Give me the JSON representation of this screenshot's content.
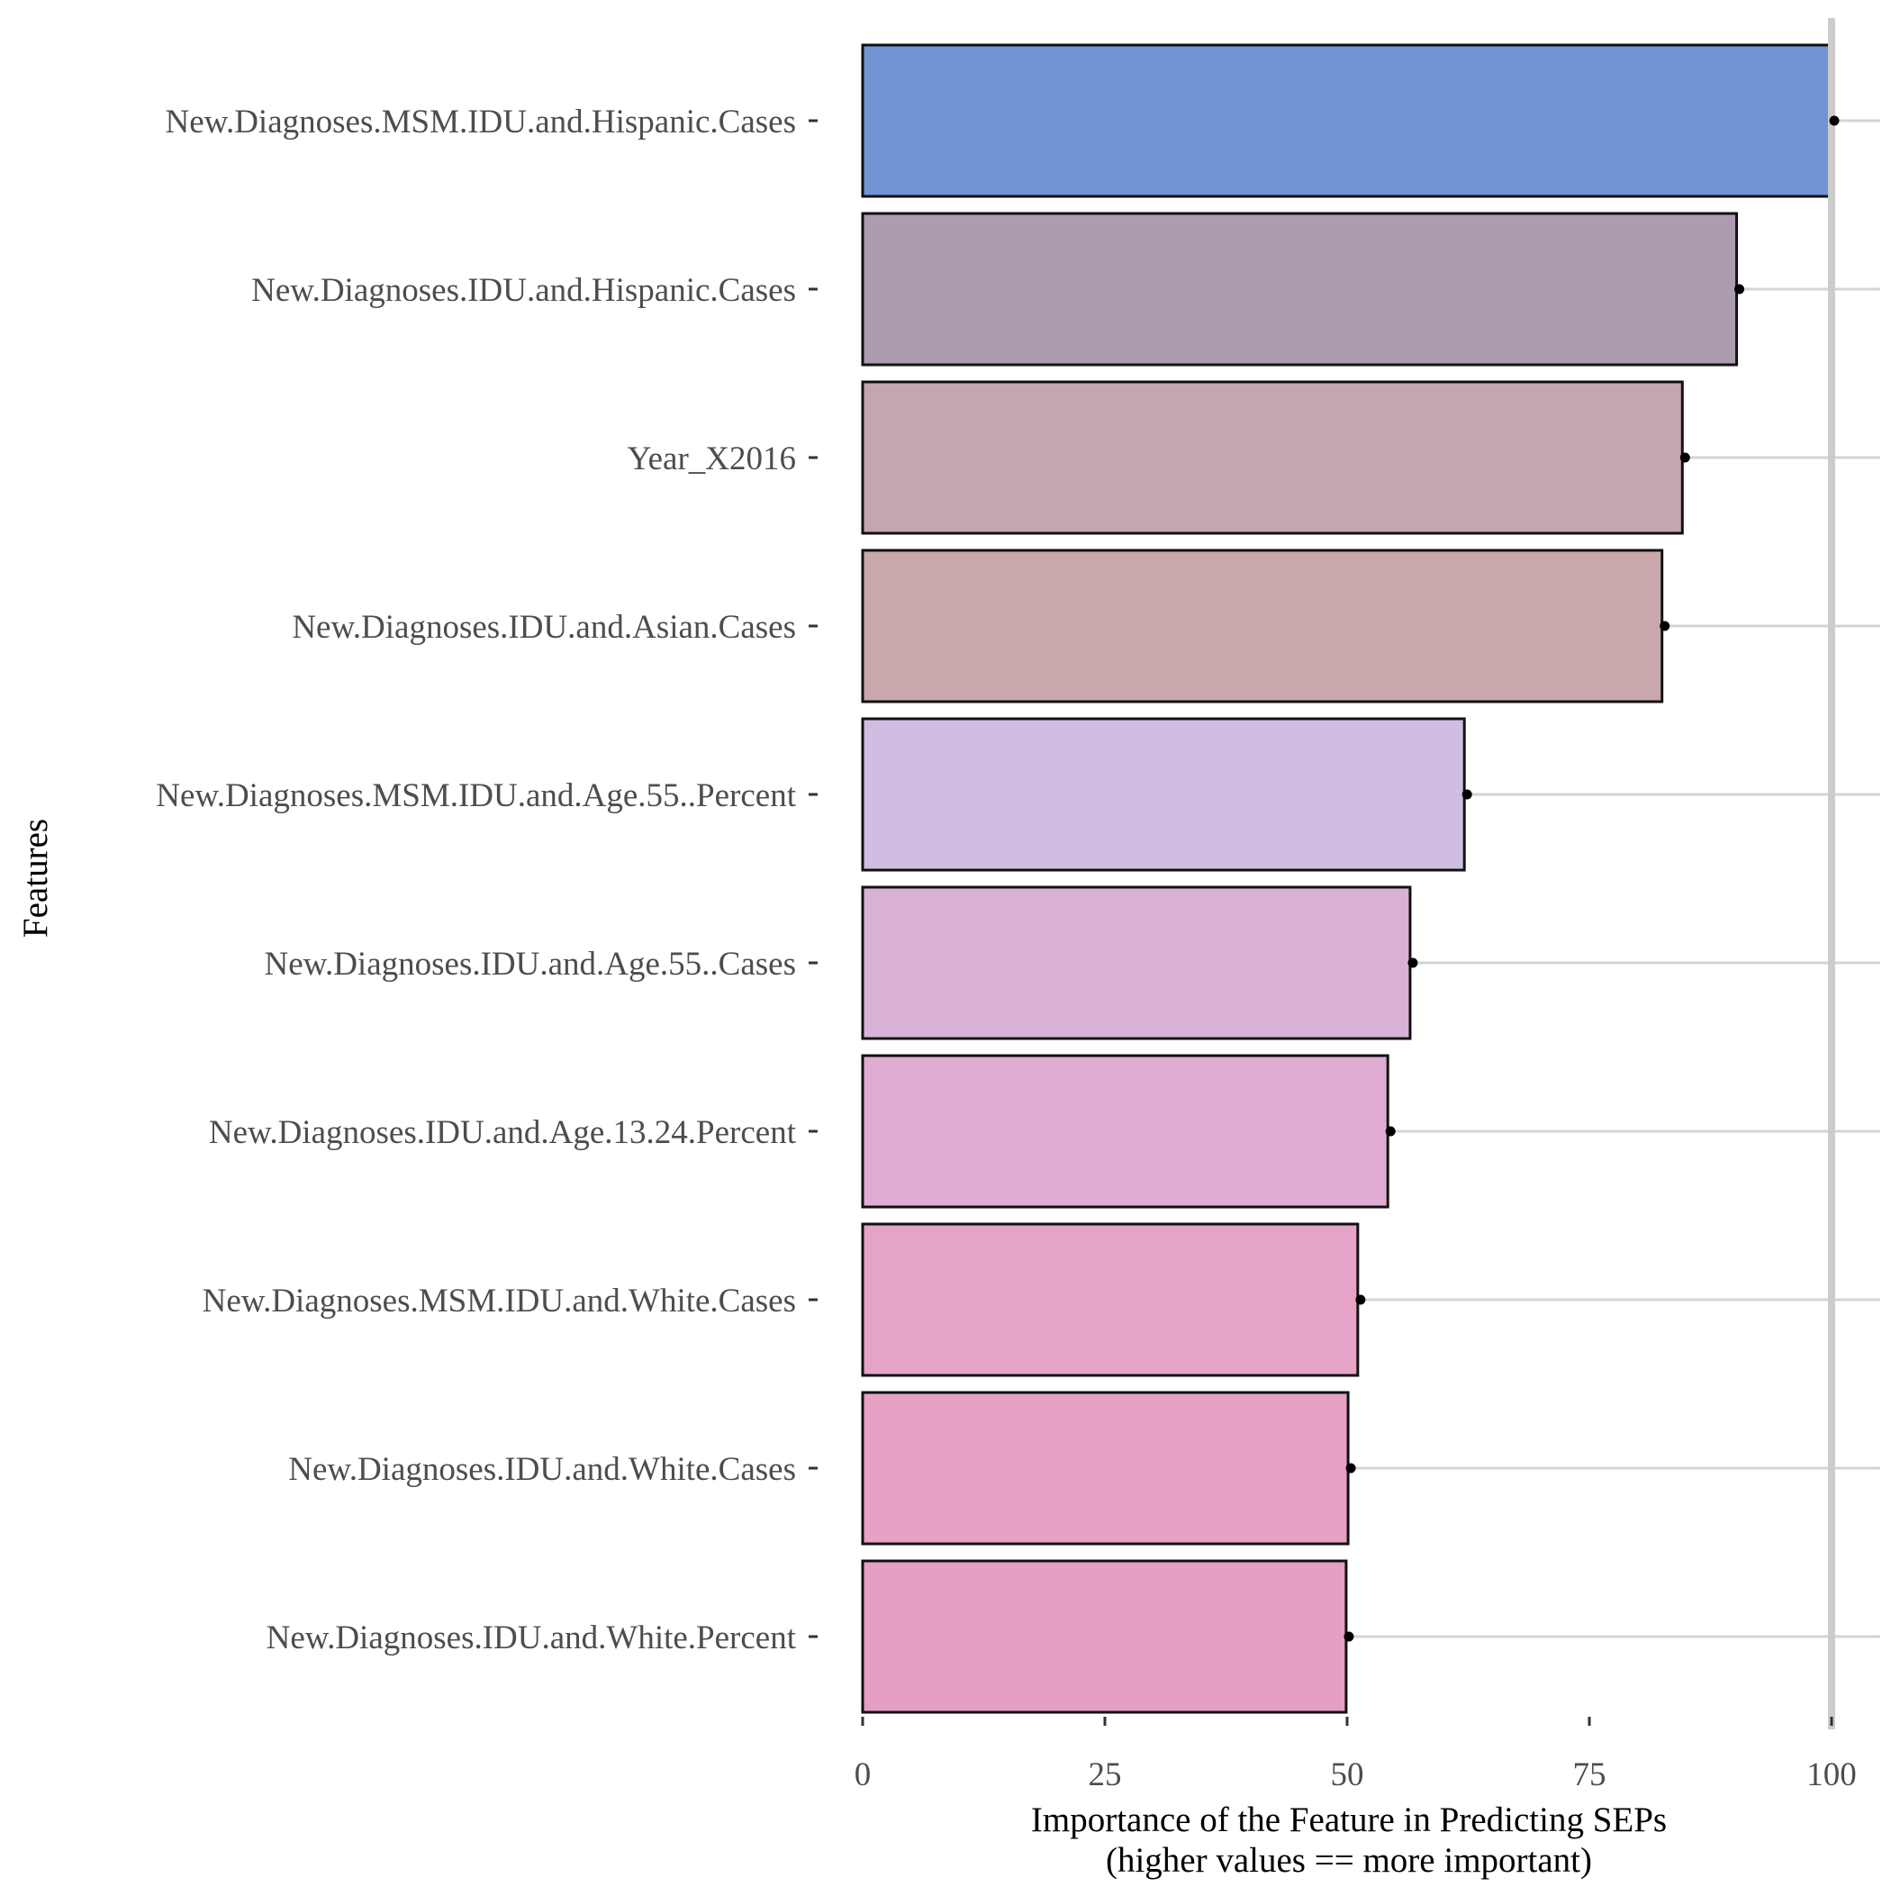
{
  "chart_data": {
    "type": "bar",
    "orientation": "horizontal",
    "categories": [
      "New.Diagnoses.MSM.IDU.and.Hispanic.Cases",
      "New.Diagnoses.IDU.and.Hispanic.Cases",
      "Year_X2016",
      "New.Diagnoses.IDU.and.Asian.Cases",
      "New.Diagnoses.MSM.IDU.and.Age.55..Percent",
      "New.Diagnoses.IDU.and.Age.55..Cases",
      "New.Diagnoses.IDU.and.Age.13.24.Percent",
      "New.Diagnoses.MSM.IDU.and.White.Cases",
      "New.Diagnoses.IDU.and.White.Cases",
      "New.Diagnoses.IDU.and.White.Percent"
    ],
    "values": [
      100,
      90.2,
      84.6,
      82.5,
      62.1,
      56.5,
      54.2,
      51.1,
      50.1,
      49.9
    ],
    "bar_colors": [
      "#7394d4",
      "#ad9caf",
      "#c3a6ae",
      "#c9a8ab",
      "#cfbde2",
      "#dab2d8",
      "#e0acd3",
      "#e5a3c8",
      "#e6a1c5",
      "#e69fc4"
    ],
    "xlim": [
      0,
      100
    ],
    "xticks": [
      0,
      25,
      50,
      75,
      100
    ],
    "xtick_labels": [
      "0",
      "25",
      "50",
      "75",
      "100"
    ],
    "xlabel_line1": "Importance of the Feature in Predicting SEPs",
    "xlabel_line2": "(higher values == more important)",
    "ylabel": "Features",
    "reference_line_x": 100,
    "grid": "horizontal major lines",
    "legend": "none"
  }
}
